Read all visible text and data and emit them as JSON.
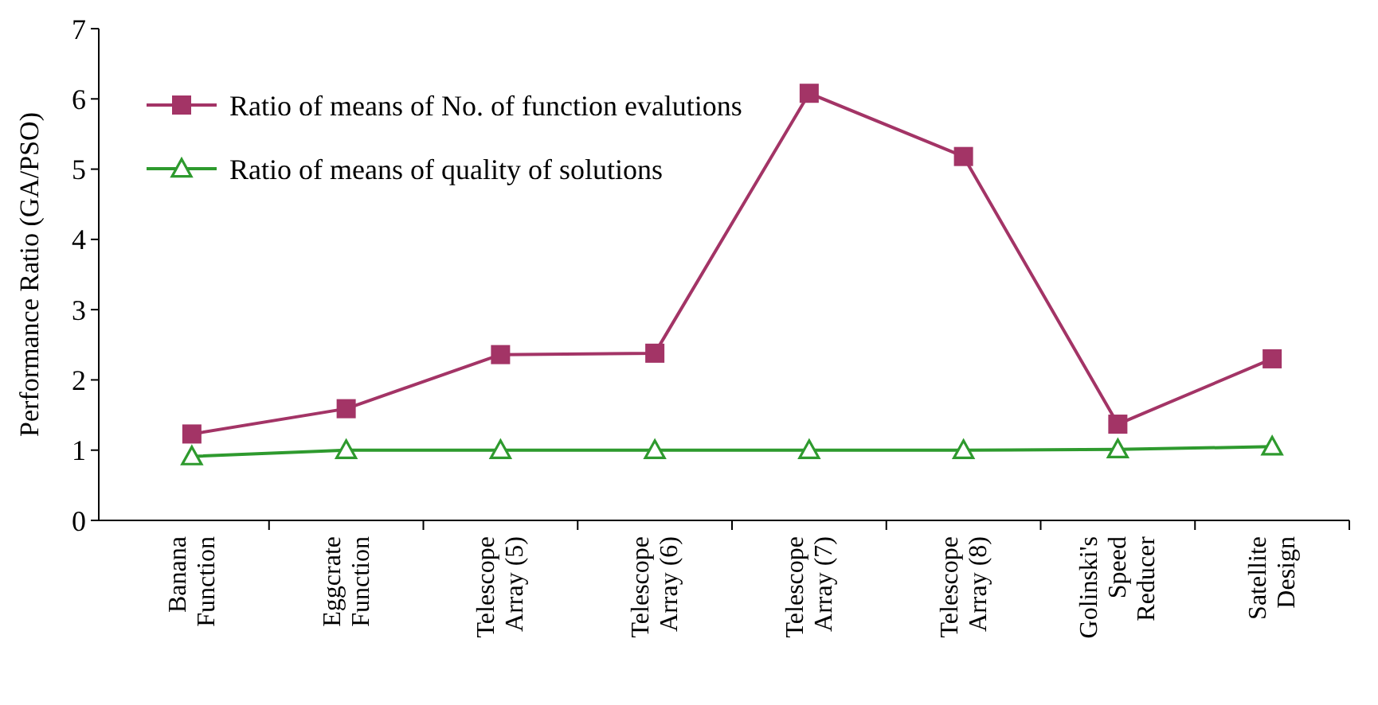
{
  "chart_data": {
    "type": "line",
    "ylabel": "Performance Ratio (GA/PSO)",
    "categories": [
      "Banana\nFunction",
      "Eggcrate\nFunction",
      "Telescope\nArray (5)",
      "Telescope\nArray (6)",
      "Telescope\nArray (7)",
      "Telescope\nArray (8)",
      "Golinski's\nSpeed\nReducer",
      "Satellite\nDesign"
    ],
    "series": [
      {
        "name": "Ratio of means of No. of function evalutions",
        "color": "#a33466",
        "marker": "square",
        "values": [
          1.23,
          1.59,
          2.36,
          2.38,
          6.08,
          5.18,
          1.37,
          2.3
        ]
      },
      {
        "name": "Ratio of means of quality of solutions",
        "color": "#2e9a2e",
        "marker": "triangle",
        "values": [
          0.91,
          1.0,
          1.0,
          1.0,
          1.0,
          1.0,
          1.01,
          1.05
        ]
      }
    ],
    "ylim": [
      0,
      7
    ],
    "yticks": [
      0,
      1,
      2,
      3,
      4,
      5,
      6,
      7
    ],
    "grid": false,
    "legend": "top left",
    "line_style": "solid"
  }
}
